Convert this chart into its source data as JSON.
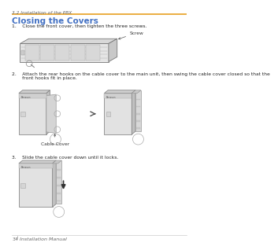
{
  "bg_color": "#ffffff",
  "top_label": "3.2 Installation of the PBX",
  "top_label_color": "#666666",
  "divider_color": "#E8A020",
  "section_title": "Closing the Covers",
  "section_title_color": "#4472C4",
  "step1_text": "1.    Close the front cover, then tighten the three screws.",
  "step2_line1": "2.    Attach the rear hooks on the cable cover to the main unit, then swing the cable cover closed so that the",
  "step2_line2": "       front hooks fit in place.",
  "step3_text": "3.    Slide the cable cover down until it locks.",
  "screw_label": "Screw",
  "cable_cover_label": "Cable Cover",
  "footer_page": "34",
  "footer_text": "Installation Manual",
  "footer_color": "#666666"
}
